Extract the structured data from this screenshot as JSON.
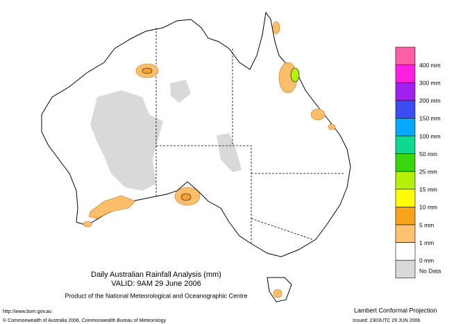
{
  "title": "Daily Australian Rainfall Analysis (mm)",
  "valid": "VALID: 9AM 29 June 2006",
  "product": "Product of the National Meteorological and Oceanographic Centre",
  "url": "http://www.bom.gov.au",
  "copyright": "© Commonwealth of Australia 2006, Commonwealth Bureau of Meteorology",
  "projection": "Lambert Conformal Projection",
  "issued": "Issued: 2303UTC 29 JUN 2006",
  "legend": [
    {
      "label": "400 mm",
      "color": "#ff5fa8"
    },
    {
      "label": "300 mm",
      "color": "#ff1fe0"
    },
    {
      "label": "200 mm",
      "color": "#a020f0"
    },
    {
      "label": "150 mm",
      "color": "#3c4cf0"
    },
    {
      "label": "100 mm",
      "color": "#06a8ff"
    },
    {
      "label": "50 mm",
      "color": "#10d890"
    },
    {
      "label": "25 mm",
      "color": "#39d60e"
    },
    {
      "label": "15 mm",
      "color": "#b4f00a"
    },
    {
      "label": "10 mm",
      "color": "#ffff00"
    },
    {
      "label": "5 mm",
      "color": "#f7a41c"
    },
    {
      "label": "1 mm",
      "color": "#fdc272"
    },
    {
      "label": "0 mm",
      "color": "#ffffff"
    },
    {
      "label": "No Data",
      "color": "#d9d9d9"
    }
  ]
}
